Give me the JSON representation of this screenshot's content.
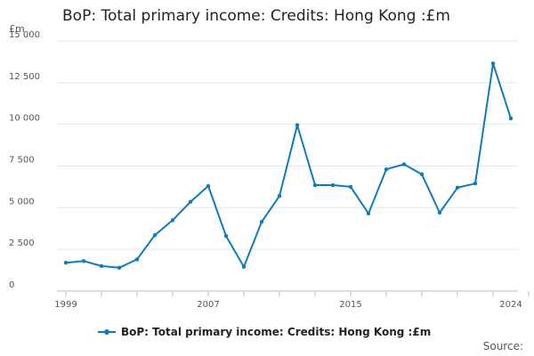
{
  "chart_data": {
    "type": "line",
    "title": "BoP: Total primary income: Credits: Hong Kong :£m",
    "ylabel": "£m",
    "xlabel": "",
    "ylim": [
      0,
      15000
    ],
    "yticks": [
      0,
      2500,
      5000,
      7500,
      10000,
      12500,
      15000
    ],
    "ytick_labels": [
      "0",
      "2 500",
      "5 000",
      "7 500",
      "10 000",
      "12 500",
      "15 000"
    ],
    "xlim": [
      1999,
      2024
    ],
    "xtick_labels": [
      "1999",
      "2007",
      "2015",
      "2024"
    ],
    "grid": true,
    "legend_position": "bottom",
    "series": [
      {
        "name": "BoP: Total primary income: Credits: Hong Kong :£m",
        "color": "#0f7bbf",
        "x": [
          1999,
          2000,
          2001,
          2002,
          2003,
          2004,
          2005,
          2006,
          2007,
          2008,
          2009,
          2010,
          2011,
          2012,
          2013,
          2014,
          2015,
          2016,
          2017,
          2018,
          2019,
          2020,
          2021,
          2022,
          2023,
          2024
        ],
        "values": [
          1700,
          1800,
          1500,
          1400,
          1900,
          3350,
          4250,
          5350,
          6300,
          3300,
          1450,
          4150,
          5700,
          9950,
          6350,
          6350,
          6250,
          4650,
          7300,
          7600,
          7000,
          4700,
          6200,
          6450,
          13650,
          10350
        ]
      }
    ],
    "source_label": "Source:"
  }
}
